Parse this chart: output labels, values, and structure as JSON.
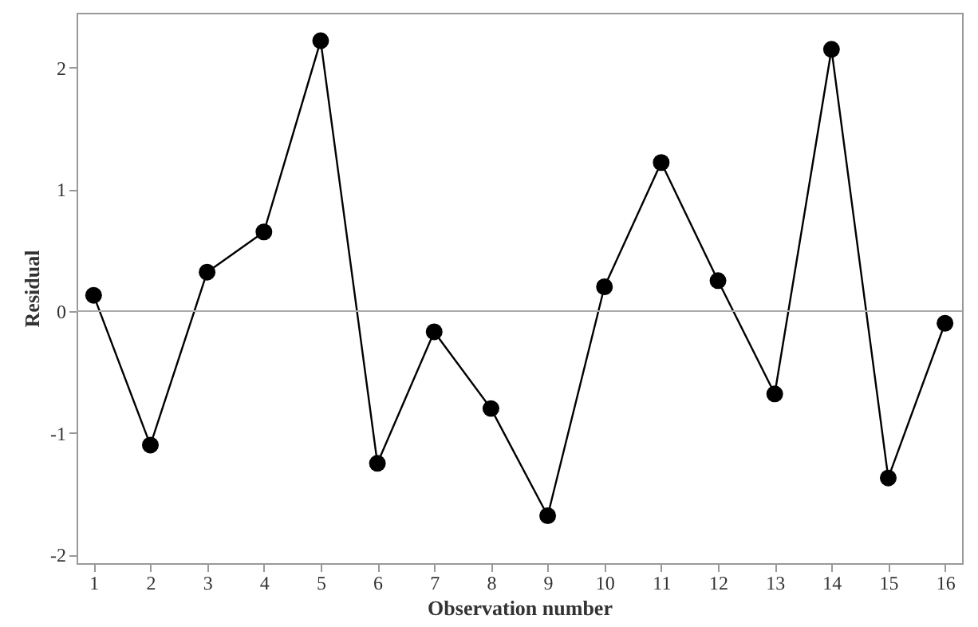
{
  "chart_data": {
    "type": "line",
    "xlabel": "Observation number",
    "ylabel": "Residual",
    "x": [
      1,
      2,
      3,
      4,
      5,
      6,
      7,
      8,
      9,
      10,
      11,
      12,
      13,
      14,
      15,
      16
    ],
    "series": [
      {
        "color": "#000000",
        "values": [
          0.13,
          -1.1,
          0.32,
          0.65,
          2.22,
          -1.25,
          -0.17,
          -0.8,
          -1.68,
          0.2,
          1.22,
          0.25,
          -0.68,
          2.15,
          -1.37,
          -0.1
        ]
      }
    ],
    "xlim": [
      0.7,
      16.3
    ],
    "xticks": [
      1,
      2,
      3,
      4,
      5,
      6,
      7,
      8,
      9,
      10,
      11,
      12,
      13,
      14,
      15,
      16
    ],
    "ylim": [
      -2.07,
      2.45
    ],
    "yticks": [
      -2,
      -1,
      0,
      1,
      2
    ],
    "ref_lines": [
      {
        "axis": "y",
        "value": 0,
        "color": "#aaaaaa"
      }
    ],
    "marker": "circle",
    "line_style": "solid",
    "grid": false
  }
}
